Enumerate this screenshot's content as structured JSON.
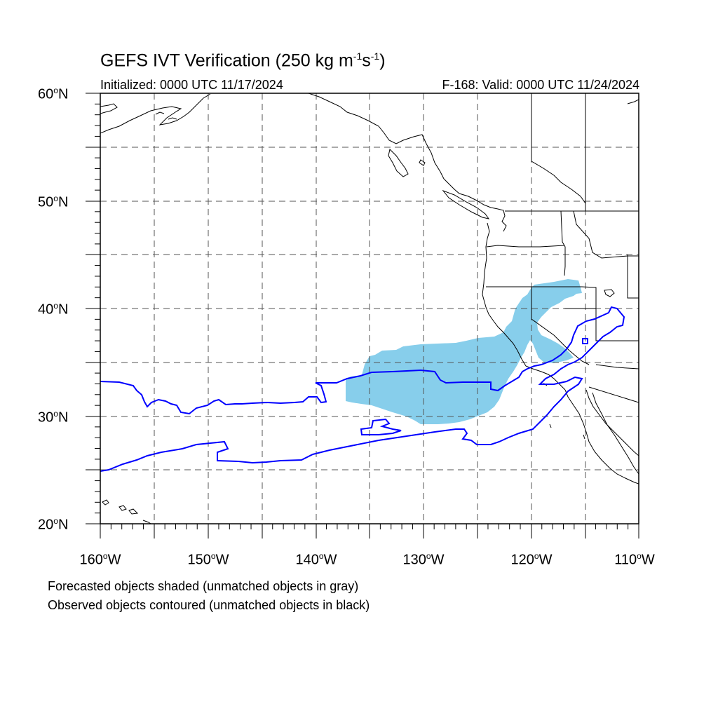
{
  "title": {
    "prefix": "GEFS IVT Verification (250 kg m",
    "exp1": "-1",
    "mid": "s",
    "exp2": "-1",
    "suffix": ")"
  },
  "initialized": "Initialized: 0000 UTC 11/17/2024",
  "valid": "F-168: Valid: 0000 UTC 11/24/2024",
  "lat_labels": [
    "60",
    "50",
    "40",
    "30",
    "20"
  ],
  "lat_suffix": "N",
  "lon_labels": [
    "160",
    "150",
    "140",
    "130",
    "120",
    "110"
  ],
  "lon_suffix": "W",
  "caption_line1": "Forecasted objects shaded (unmatched objects in gray)",
  "caption_line2": "Observed objects contoured (unmatched objects in black)",
  "colors": {
    "forecast_fill": "#87ceeb",
    "observed_contour": "#0000ff",
    "coastline": "#000000",
    "grid": "#555555"
  },
  "map_extent": {
    "lon_min": -160,
    "lon_max": -110,
    "lat_min": 20,
    "lat_max": 60
  }
}
